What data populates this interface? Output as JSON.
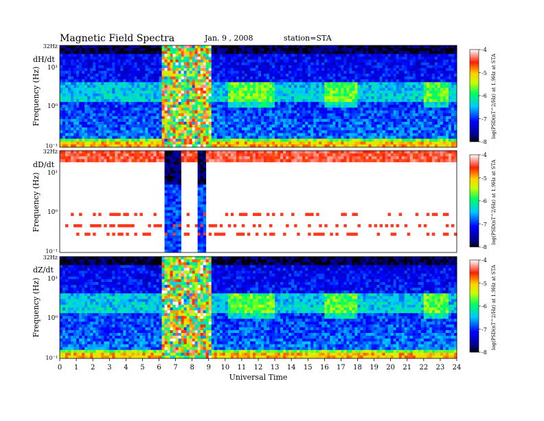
{
  "header": {
    "title": "Magnetic  Field  Spectra",
    "date": "Jan. 9  , 2008",
    "station": "station=STA"
  },
  "chart_data": {
    "type": "heatmap",
    "xlabel": "Universal Time",
    "x_ticks": [
      "0",
      "1",
      "2",
      "3",
      "4",
      "5",
      "6",
      "7",
      "8",
      "9",
      "10",
      "11",
      "12",
      "13",
      "14",
      "15",
      "16",
      "17",
      "18",
      "19",
      "20",
      "21",
      "22",
      "23",
      "24"
    ],
    "xlim": [
      0,
      24
    ],
    "panels": [
      {
        "component": "dH/dt",
        "ylabel": "Frequency  (Hz)",
        "y_ticks": [
          "32Hz",
          "10¹",
          "10⁰",
          "10⁻¹"
        ],
        "ylim": [
          0.1,
          32
        ],
        "log_y": true,
        "colorbar": {
          "label": "log(PSD(nT^2/Hz) at 1.9Hz at STA",
          "ticks": [
            "-4",
            "-5",
            "-6",
            "-7",
            "-8"
          ],
          "range": [
            -8,
            -4
          ]
        },
        "baseline_level": -6.9,
        "band_level": -6.2,
        "disturbed_interval_ut": [
          6.1,
          9.2
        ],
        "enhanced_intervals_ut": [
          [
            10.2,
            13.0
          ],
          [
            16.0,
            18.0
          ],
          [
            22.0,
            23.5
          ]
        ],
        "enhanced_band_hz": [
          1.0,
          4.0
        ]
      },
      {
        "component": "dD/dt",
        "ylabel": "Frequency  (Hz)",
        "y_ticks": [
          "32Hz",
          "10¹",
          "10⁰",
          "10⁻¹"
        ],
        "ylim": [
          0.1,
          32
        ],
        "log_y": true,
        "colorbar": {
          "label": "log(PSD(nT^2/Hz) at 1.9Hz at STA",
          "ticks": [
            "-4",
            "-5",
            "-6",
            "-7",
            "-8"
          ],
          "range": [
            -8,
            -4
          ]
        },
        "saturated_band_hz": [
          18,
          32
        ],
        "data_gaps_ut": [
          [
            6.3,
            7.3
          ],
          [
            8.3,
            8.9
          ]
        ],
        "faint_lines_hz": [
          0.9,
          0.45,
          0.3
        ]
      },
      {
        "component": "dZ/dt",
        "ylabel": "Frequency  (Hz)",
        "y_ticks": [
          "32Hz",
          "10¹",
          "10⁰",
          "10⁻¹"
        ],
        "ylim": [
          0.1,
          32
        ],
        "log_y": true,
        "colorbar": {
          "label": "log(PSD(nT^2/Hz) at 1.9Hz at STA",
          "ticks": [
            "-4",
            "-5",
            "-6",
            "-7",
            "-8"
          ],
          "range": [
            -8,
            -4
          ]
        },
        "baseline_level": -6.9,
        "band_level": -6.2,
        "disturbed_interval_ut": [
          6.1,
          9.2
        ],
        "enhanced_intervals_ut": [
          [
            10.2,
            13.0
          ],
          [
            16.0,
            18.0
          ],
          [
            22.0,
            23.5
          ]
        ],
        "enhanced_band_hz": [
          1.0,
          4.0
        ]
      }
    ]
  }
}
